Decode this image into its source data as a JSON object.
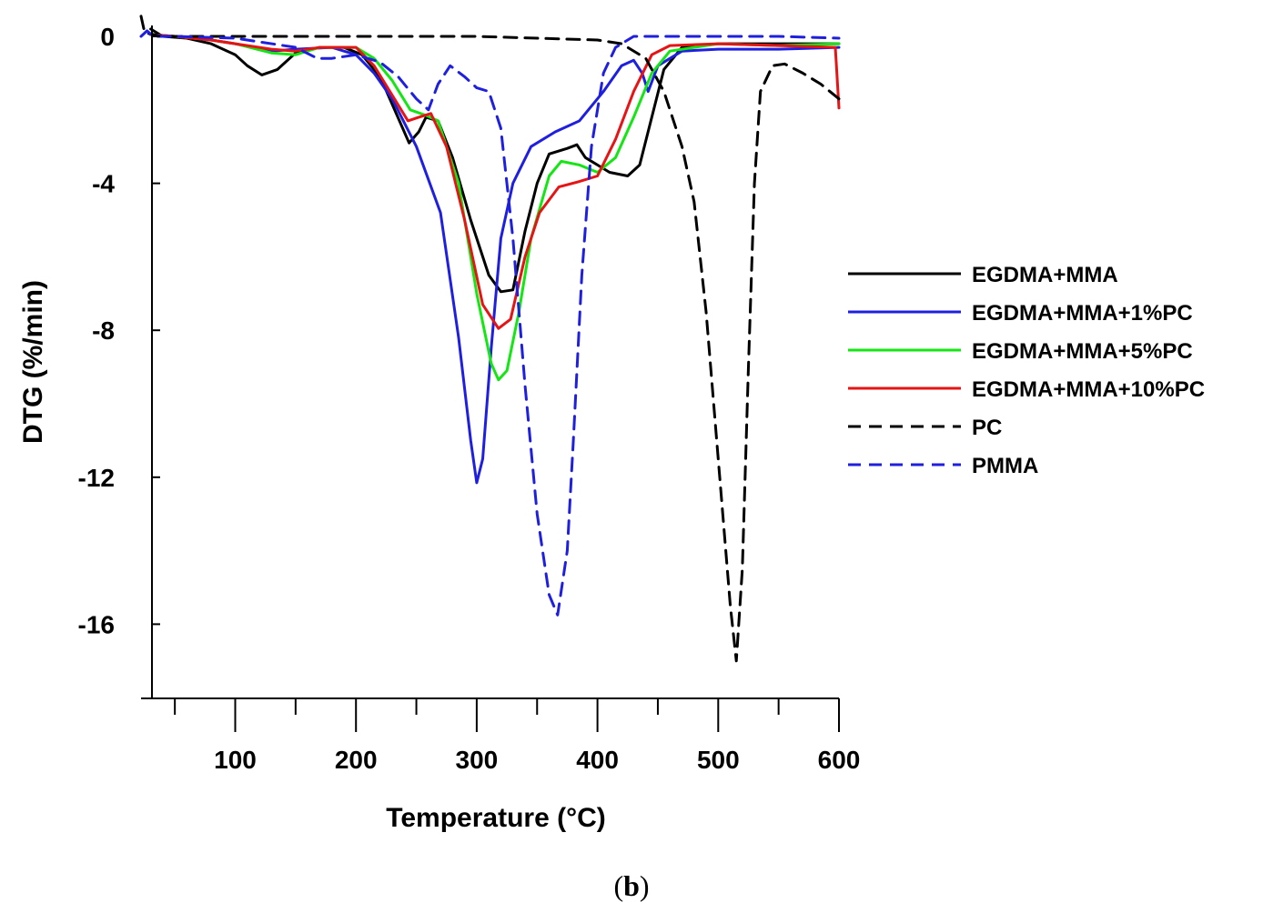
{
  "chart_data": {
    "type": "line",
    "title": "",
    "xlabel": "Temperature (°C)",
    "ylabel": "DTG (%/min)",
    "xlim": [
      22,
      600
    ],
    "ylim": [
      -18,
      0.6
    ],
    "x_ticks": [
      100,
      200,
      300,
      400,
      500,
      600
    ],
    "x_tick_labels": [
      "100",
      "200",
      "300",
      "400",
      "500",
      "600"
    ],
    "x_minor_ticks": [
      50,
      150,
      250,
      350,
      450,
      550
    ],
    "y_ticks": [
      0,
      -4,
      -8,
      -12,
      -16
    ],
    "y_tick_labels": [
      "0",
      "-4",
      "-8",
      "-12",
      "-16"
    ],
    "grid": false,
    "legend_position": "right",
    "caption_open": "(",
    "caption_letter": "b",
    "caption_close": ")",
    "series": [
      {
        "name": "EGDMA+MMA",
        "color": "#000000",
        "dash": "solid",
        "points": [
          [
            30,
            0.2
          ],
          [
            40,
            0
          ],
          [
            60,
            -0.05
          ],
          [
            80,
            -0.2
          ],
          [
            100,
            -0.5
          ],
          [
            110,
            -0.8
          ],
          [
            122,
            -1.05
          ],
          [
            135,
            -0.9
          ],
          [
            150,
            -0.45
          ],
          [
            170,
            -0.3
          ],
          [
            190,
            -0.3
          ],
          [
            205,
            -0.5
          ],
          [
            220,
            -1.1
          ],
          [
            232,
            -2.0
          ],
          [
            244,
            -2.9
          ],
          [
            252,
            -2.6
          ],
          [
            258,
            -2.2
          ],
          [
            268,
            -2.3
          ],
          [
            280,
            -3.3
          ],
          [
            295,
            -5.0
          ],
          [
            310,
            -6.5
          ],
          [
            320,
            -6.95
          ],
          [
            330,
            -6.9
          ],
          [
            340,
            -5.3
          ],
          [
            350,
            -4.0
          ],
          [
            360,
            -3.2
          ],
          [
            375,
            -3.05
          ],
          [
            383,
            -2.95
          ],
          [
            390,
            -3.3
          ],
          [
            400,
            -3.5
          ],
          [
            410,
            -3.7
          ],
          [
            425,
            -3.8
          ],
          [
            435,
            -3.5
          ],
          [
            445,
            -2.2
          ],
          [
            455,
            -0.9
          ],
          [
            470,
            -0.3
          ],
          [
            500,
            -0.2
          ],
          [
            550,
            -0.2
          ],
          [
            600,
            -0.2
          ]
        ]
      },
      {
        "name": "EGDMA+MMA+1%PC",
        "color": "#1f1fe0",
        "dash": "solid",
        "points": [
          [
            30,
            0.05
          ],
          [
            50,
            0
          ],
          [
            80,
            -0.1
          ],
          [
            100,
            -0.2
          ],
          [
            130,
            -0.4
          ],
          [
            150,
            -0.35
          ],
          [
            180,
            -0.3
          ],
          [
            200,
            -0.5
          ],
          [
            215,
            -1.0
          ],
          [
            230,
            -1.7
          ],
          [
            250,
            -3.0
          ],
          [
            270,
            -4.8
          ],
          [
            285,
            -8.2
          ],
          [
            295,
            -11.0
          ],
          [
            300,
            -12.15
          ],
          [
            305,
            -11.5
          ],
          [
            312,
            -8.5
          ],
          [
            320,
            -5.5
          ],
          [
            330,
            -4.0
          ],
          [
            345,
            -3.0
          ],
          [
            365,
            -2.6
          ],
          [
            385,
            -2.3
          ],
          [
            405,
            -1.5
          ],
          [
            420,
            -0.8
          ],
          [
            430,
            -0.65
          ],
          [
            437,
            -1.0
          ],
          [
            442,
            -1.5
          ],
          [
            450,
            -0.8
          ],
          [
            470,
            -0.4
          ],
          [
            500,
            -0.35
          ],
          [
            550,
            -0.35
          ],
          [
            600,
            -0.3
          ]
        ]
      },
      {
        "name": "EGDMA+MMA+5%PC",
        "color": "#14e614",
        "dash": "solid",
        "points": [
          [
            30,
            0.05
          ],
          [
            50,
            0
          ],
          [
            80,
            -0.1
          ],
          [
            100,
            -0.2
          ],
          [
            130,
            -0.45
          ],
          [
            150,
            -0.5
          ],
          [
            170,
            -0.3
          ],
          [
            200,
            -0.3
          ],
          [
            215,
            -0.6
          ],
          [
            230,
            -1.2
          ],
          [
            245,
            -2.0
          ],
          [
            258,
            -2.15
          ],
          [
            268,
            -2.3
          ],
          [
            285,
            -4.0
          ],
          [
            300,
            -7.0
          ],
          [
            312,
            -8.9
          ],
          [
            318,
            -9.35
          ],
          [
            325,
            -9.1
          ],
          [
            335,
            -7.5
          ],
          [
            345,
            -5.5
          ],
          [
            360,
            -3.8
          ],
          [
            370,
            -3.4
          ],
          [
            385,
            -3.5
          ],
          [
            400,
            -3.7
          ],
          [
            415,
            -3.3
          ],
          [
            430,
            -2.2
          ],
          [
            445,
            -1.0
          ],
          [
            460,
            -0.4
          ],
          [
            500,
            -0.2
          ],
          [
            550,
            -0.25
          ],
          [
            600,
            -0.2
          ]
        ]
      },
      {
        "name": "EGDMA+MMA+10%PC",
        "color": "#e61414",
        "dash": "solid",
        "points": [
          [
            30,
            0.05
          ],
          [
            50,
            0
          ],
          [
            80,
            -0.1
          ],
          [
            100,
            -0.2
          ],
          [
            130,
            -0.35
          ],
          [
            150,
            -0.4
          ],
          [
            170,
            -0.3
          ],
          [
            200,
            -0.3
          ],
          [
            215,
            -0.8
          ],
          [
            230,
            -1.6
          ],
          [
            243,
            -2.3
          ],
          [
            252,
            -2.2
          ],
          [
            262,
            -2.1
          ],
          [
            275,
            -3.0
          ],
          [
            290,
            -5.0
          ],
          [
            305,
            -7.3
          ],
          [
            318,
            -7.95
          ],
          [
            328,
            -7.7
          ],
          [
            340,
            -6.0
          ],
          [
            352,
            -4.8
          ],
          [
            368,
            -4.1
          ],
          [
            385,
            -3.95
          ],
          [
            400,
            -3.8
          ],
          [
            415,
            -2.8
          ],
          [
            430,
            -1.5
          ],
          [
            445,
            -0.5
          ],
          [
            460,
            -0.25
          ],
          [
            500,
            -0.2
          ],
          [
            550,
            -0.25
          ],
          [
            597,
            -0.3
          ],
          [
            600,
            -1.95
          ]
        ]
      },
      {
        "name": "PC",
        "color": "#000000",
        "dash": "dashed",
        "points": [
          [
            22,
            0.55
          ],
          [
            25,
            0.1
          ],
          [
            40,
            0
          ],
          [
            100,
            0
          ],
          [
            200,
            0
          ],
          [
            300,
            0
          ],
          [
            400,
            -0.1
          ],
          [
            420,
            -0.2
          ],
          [
            440,
            -0.6
          ],
          [
            455,
            -1.5
          ],
          [
            470,
            -3.0
          ],
          [
            480,
            -4.5
          ],
          [
            490,
            -7.5
          ],
          [
            500,
            -11.5
          ],
          [
            510,
            -15.5
          ],
          [
            515,
            -17.0
          ],
          [
            520,
            -14.5
          ],
          [
            525,
            -9.0
          ],
          [
            530,
            -4.0
          ],
          [
            535,
            -1.5
          ],
          [
            545,
            -0.8
          ],
          [
            555,
            -0.75
          ],
          [
            570,
            -1.0
          ],
          [
            585,
            -1.3
          ],
          [
            600,
            -1.7
          ]
        ]
      },
      {
        "name": "PMMA",
        "color": "#1f1fe0",
        "dash": "dashed",
        "points": [
          [
            22,
            0.0
          ],
          [
            27,
            0.15
          ],
          [
            32,
            0.0
          ],
          [
            50,
            0
          ],
          [
            100,
            -0.05
          ],
          [
            150,
            -0.3
          ],
          [
            168,
            -0.6
          ],
          [
            180,
            -0.6
          ],
          [
            200,
            -0.5
          ],
          [
            220,
            -0.7
          ],
          [
            235,
            -1.1
          ],
          [
            250,
            -1.7
          ],
          [
            260,
            -2.0
          ],
          [
            268,
            -1.3
          ],
          [
            278,
            -0.8
          ],
          [
            290,
            -1.1
          ],
          [
            300,
            -1.4
          ],
          [
            310,
            -1.5
          ],
          [
            320,
            -2.5
          ],
          [
            330,
            -5.5
          ],
          [
            340,
            -9.5
          ],
          [
            350,
            -13.0
          ],
          [
            360,
            -15.2
          ],
          [
            367,
            -15.75
          ],
          [
            375,
            -14.0
          ],
          [
            380,
            -11.0
          ],
          [
            387,
            -6.5
          ],
          [
            395,
            -3.0
          ],
          [
            405,
            -1.0
          ],
          [
            415,
            -0.3
          ],
          [
            430,
            0
          ],
          [
            500,
            0
          ],
          [
            550,
            0
          ],
          [
            600,
            -0.05
          ]
        ]
      }
    ]
  }
}
